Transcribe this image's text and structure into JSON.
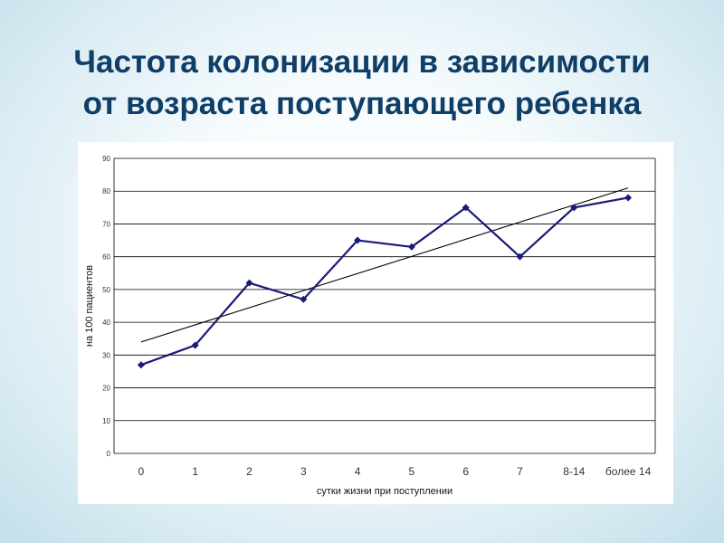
{
  "slide": {
    "title_line1": "Частота колонизации в зависимости",
    "title_line2": "от возраста поступающего ребенка"
  },
  "colors": {
    "title": "#0f3e67",
    "series_line": "#1a1a7a",
    "trend_line": "#000000",
    "grid": "#000000",
    "background": "#dcedf4"
  },
  "chart_data": {
    "type": "line",
    "xlabel": "сутки жизни при поступлении",
    "ylabel": "на 100 пациентов",
    "categories": [
      "0",
      "1",
      "2",
      "3",
      "4",
      "5",
      "6",
      "7",
      "8-14",
      "более 14"
    ],
    "series": [
      {
        "values": [
          27,
          33,
          52,
          47,
          65,
          63,
          75,
          60,
          75,
          78
        ],
        "marker": "diamond"
      }
    ],
    "trendline": {
      "type": "linear",
      "start": 34,
      "end": 81
    },
    "ylim": [
      0,
      90
    ],
    "yticks": [
      "0",
      "10",
      "20",
      "30",
      "40",
      "50",
      "60",
      "70",
      "80",
      "90"
    ],
    "grid": true,
    "legend": "none"
  }
}
